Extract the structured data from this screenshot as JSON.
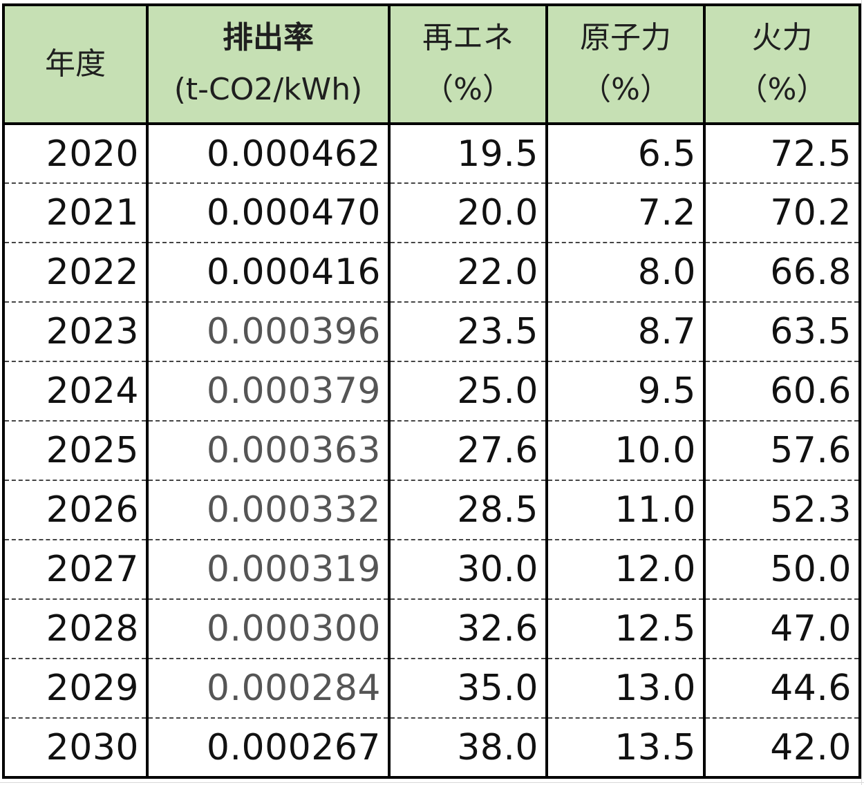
{
  "colors": {
    "header_bg": "#c6e0b4",
    "border": "#000000",
    "text": "#111111",
    "estimated_text": "#555555"
  },
  "chart_data": {
    "type": "table",
    "columns": [
      {
        "key": "year",
        "lines": [
          "年度"
        ]
      },
      {
        "key": "rate",
        "lines": [
          "排出率",
          "(t-CO2/kWh)"
        ]
      },
      {
        "key": "re",
        "lines": [
          "再エネ",
          "（%）"
        ]
      },
      {
        "key": "nuclear",
        "lines": [
          "原子力",
          "（%）"
        ]
      },
      {
        "key": "thermal",
        "lines": [
          "火力",
          "（%）"
        ]
      }
    ],
    "rows": [
      {
        "year": "2020",
        "rate": "0.000462",
        "re": "19.5",
        "nuclear": "6.5",
        "thermal": "72.5",
        "estimated": false
      },
      {
        "year": "2021",
        "rate": "0.000470",
        "re": "20.0",
        "nuclear": "7.2",
        "thermal": "70.2",
        "estimated": false
      },
      {
        "year": "2022",
        "rate": "0.000416",
        "re": "22.0",
        "nuclear": "8.0",
        "thermal": "66.8",
        "estimated": false
      },
      {
        "year": "2023",
        "rate": "0.000396",
        "re": "23.5",
        "nuclear": "8.7",
        "thermal": "63.5",
        "estimated": true
      },
      {
        "year": "2024",
        "rate": "0.000379",
        "re": "25.0",
        "nuclear": "9.5",
        "thermal": "60.6",
        "estimated": true
      },
      {
        "year": "2025",
        "rate": "0.000363",
        "re": "27.6",
        "nuclear": "10.0",
        "thermal": "57.6",
        "estimated": true
      },
      {
        "year": "2026",
        "rate": "0.000332",
        "re": "28.5",
        "nuclear": "11.0",
        "thermal": "52.3",
        "estimated": true
      },
      {
        "year": "2027",
        "rate": "0.000319",
        "re": "30.0",
        "nuclear": "12.0",
        "thermal": "50.0",
        "estimated": true
      },
      {
        "year": "2028",
        "rate": "0.000300",
        "re": "32.6",
        "nuclear": "12.5",
        "thermal": "47.0",
        "estimated": true
      },
      {
        "year": "2029",
        "rate": "0.000284",
        "re": "35.0",
        "nuclear": "13.0",
        "thermal": "44.6",
        "estimated": true
      },
      {
        "year": "2030",
        "rate": "0.000267",
        "re": "38.0",
        "nuclear": "13.5",
        "thermal": "42.0",
        "estimated": false
      }
    ]
  }
}
